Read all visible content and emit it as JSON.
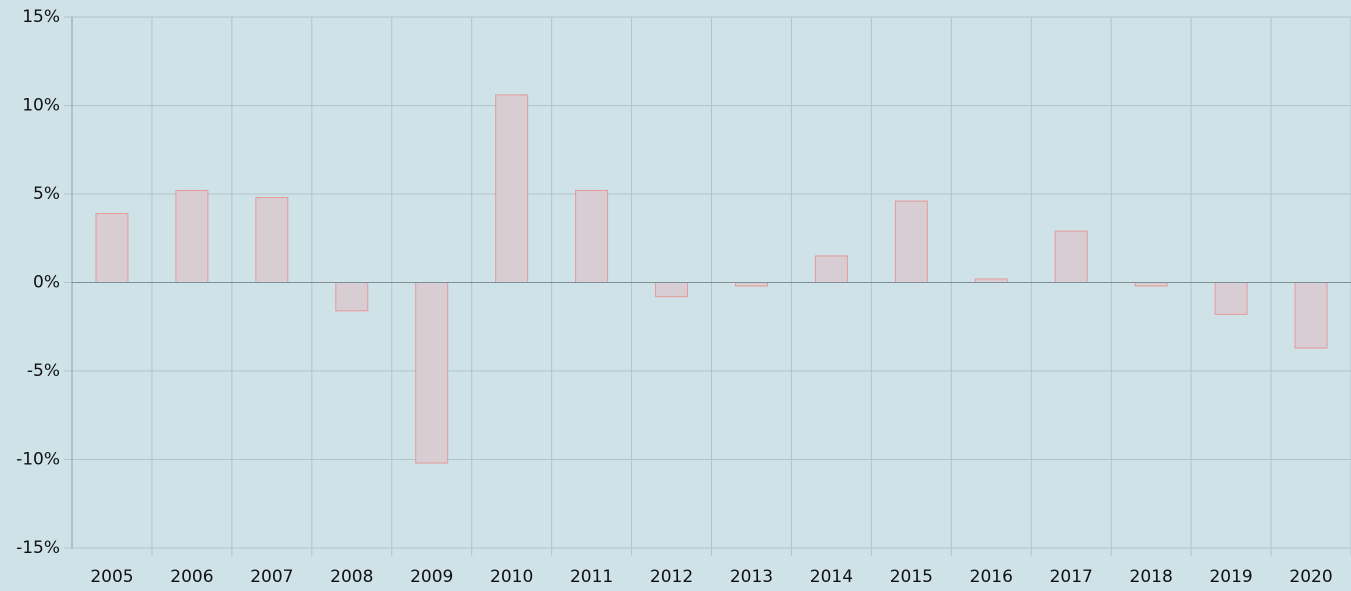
{
  "chart_data": {
    "type": "bar",
    "categories": [
      "2005",
      "2006",
      "2007",
      "2008",
      "2009",
      "2010",
      "2011",
      "2012",
      "2013",
      "2014",
      "2015",
      "2016",
      "2017",
      "2018",
      "2019",
      "2020"
    ],
    "values": [
      3.9,
      5.2,
      4.8,
      -1.6,
      -10.2,
      10.6,
      5.2,
      -0.8,
      -0.2,
      1.5,
      4.6,
      0.2,
      2.9,
      -0.2,
      -1.8,
      -3.7
    ],
    "color": "#d8cdd2",
    "ylim": [
      -15,
      15
    ],
    "yticks": [
      {
        "value": -15,
        "label": "-15%"
      },
      {
        "value": -10,
        "label": "-10%"
      },
      {
        "value": -5,
        "label": "-5%"
      },
      {
        "value": 0,
        "label": "0%"
      },
      {
        "value": 5,
        "label": "5%"
      },
      {
        "value": 10,
        "label": "10%"
      },
      {
        "value": 15,
        "label": "15%"
      }
    ],
    "grid": true
  }
}
